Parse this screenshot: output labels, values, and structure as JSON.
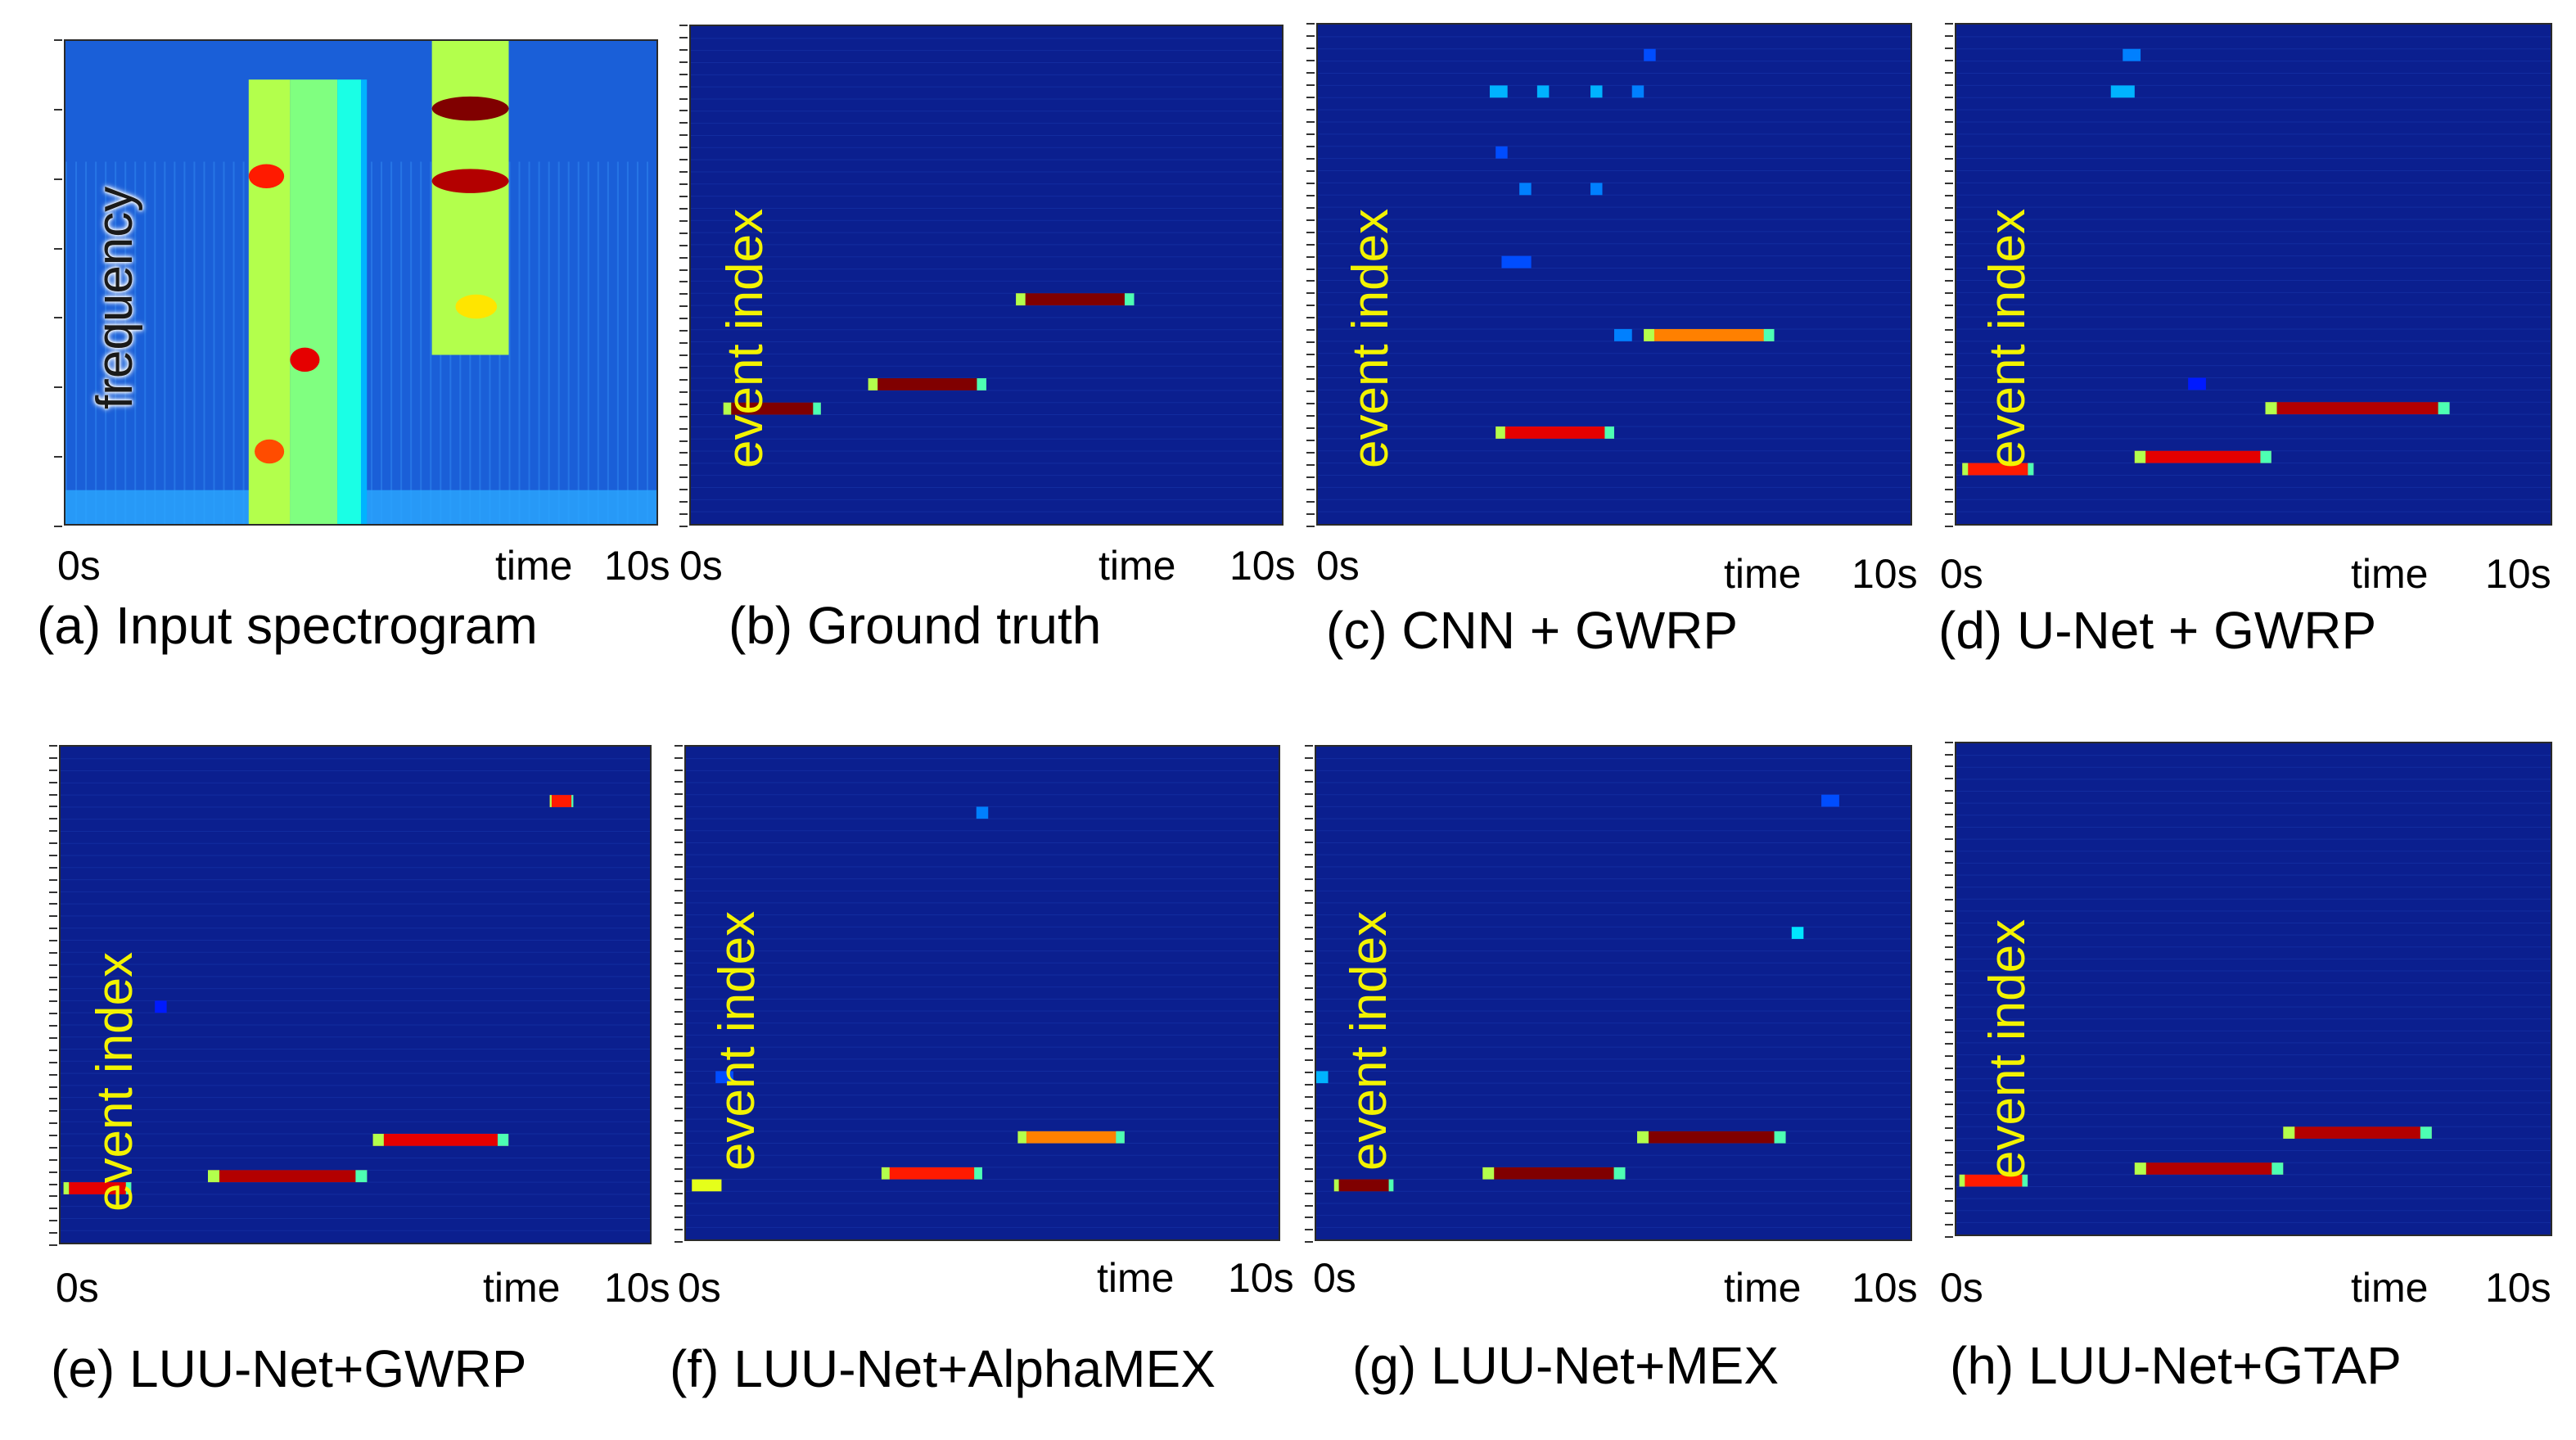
{
  "panels": [
    {
      "id": "a",
      "caption": "(a) Input spectrogram",
      "ylabel": "frequency",
      "x_left": "0s",
      "x_mid": "time",
      "x_right": "10s"
    },
    {
      "id": "b",
      "caption": "(b) Ground truth",
      "ylabel": "event index",
      "x_left": "0s",
      "x_mid": "time",
      "x_right": "10s"
    },
    {
      "id": "c",
      "caption": "(c) CNN + GWRP",
      "ylabel": "event index",
      "x_left": "0s",
      "x_mid": "time",
      "x_right": "10s"
    },
    {
      "id": "d",
      "caption": "(d) U-Net + GWRP",
      "ylabel": "event index",
      "x_left": "0s",
      "x_mid": "time",
      "x_right": "10s"
    },
    {
      "id": "e",
      "caption": "(e) LUU-Net+GWRP",
      "ylabel": "event index",
      "x_left": "0s",
      "x_mid": "time",
      "x_right": "10s"
    },
    {
      "id": "f",
      "caption": "(f) LUU-Net+AlphaMEX",
      "ylabel": "event index",
      "x_left": "0s",
      "x_mid": "time",
      "x_right": "10s"
    },
    {
      "id": "g",
      "caption": "(g) LUU-Net+MEX",
      "ylabel": "event index",
      "x_left": "0s",
      "x_mid": "time",
      "x_right": "10s"
    },
    {
      "id": "h",
      "caption": "(h) LUU-Net+GTAP",
      "ylabel": "event index",
      "x_left": "0s",
      "x_mid": "time",
      "x_right": "10s"
    }
  ],
  "chart_data": [
    {
      "type": "heatmap",
      "panel": "a",
      "xlim": [
        0,
        10
      ],
      "colormap": "jet",
      "bands": [
        {
          "t0": 3.1,
          "t1": 3.8,
          "f0": 0.0,
          "f1": 0.92,
          "level": 0.55
        },
        {
          "t0": 3.8,
          "t1": 4.6,
          "f0": 0.0,
          "f1": 0.92,
          "level": 0.5
        },
        {
          "t0": 4.6,
          "t1": 5.0,
          "f0": 0.0,
          "f1": 0.92,
          "level": 0.4
        },
        {
          "t0": 5.0,
          "t1": 5.1,
          "f0": 0.0,
          "f1": 0.92,
          "level": 0.3
        },
        {
          "t0": 6.2,
          "t1": 7.5,
          "f0": 0.35,
          "f1": 1.0,
          "level": 0.55
        }
      ],
      "hotspots": [
        {
          "t0": 6.2,
          "t1": 7.5,
          "f": 0.86,
          "level": 1.0
        },
        {
          "t0": 6.2,
          "t1": 7.5,
          "f": 0.71,
          "level": 0.95
        },
        {
          "t0": 6.6,
          "t1": 7.3,
          "f": 0.45,
          "level": 0.65
        },
        {
          "t0": 3.8,
          "t1": 4.3,
          "f": 0.34,
          "level": 0.9
        },
        {
          "t0": 3.1,
          "t1": 3.7,
          "f": 0.72,
          "level": 0.85
        },
        {
          "t0": 3.2,
          "t1": 3.7,
          "f": 0.15,
          "level": 0.8
        }
      ]
    },
    {
      "type": "heatmap",
      "panel": "b",
      "xlim": [
        0,
        10
      ],
      "rows": 41,
      "events": [
        {
          "row": 9,
          "t0": 0.55,
          "t1": 2.2,
          "level": 1.0
        },
        {
          "row": 11,
          "t0": 3.0,
          "t1": 5.0,
          "level": 1.0
        },
        {
          "row": 18,
          "t0": 5.5,
          "t1": 7.5,
          "level": 1.0
        }
      ]
    },
    {
      "type": "heatmap",
      "panel": "c",
      "xlim": [
        0,
        10
      ],
      "rows": 41,
      "events": [
        {
          "row": 7,
          "t0": 3.0,
          "t1": 5.0,
          "level": 0.9
        },
        {
          "row": 15,
          "t0": 5.5,
          "t1": 7.7,
          "level": 0.75
        },
        {
          "row": 35,
          "t0": 2.9,
          "t1": 3.2,
          "level": 0.3
        },
        {
          "row": 35,
          "t0": 3.7,
          "t1": 3.9,
          "level": 0.3
        },
        {
          "row": 35,
          "t0": 4.6,
          "t1": 4.8,
          "level": 0.3
        },
        {
          "row": 35,
          "t0": 5.3,
          "t1": 5.5,
          "level": 0.25
        },
        {
          "row": 27,
          "t0": 3.4,
          "t1": 3.6,
          "level": 0.25
        },
        {
          "row": 27,
          "t0": 4.6,
          "t1": 4.8,
          "level": 0.25
        },
        {
          "row": 21,
          "t0": 3.1,
          "t1": 3.6,
          "level": 0.2
        },
        {
          "row": 30,
          "t0": 3.0,
          "t1": 3.2,
          "level": 0.2
        },
        {
          "row": 38,
          "t0": 5.5,
          "t1": 5.7,
          "level": 0.2
        },
        {
          "row": 15,
          "t0": 5.0,
          "t1": 5.3,
          "level": 0.25
        }
      ]
    },
    {
      "type": "heatmap",
      "panel": "d",
      "xlim": [
        0,
        10
      ],
      "rows": 41,
      "events": [
        {
          "row": 4,
          "t0": 0.1,
          "t1": 1.3,
          "level": 0.85
        },
        {
          "row": 5,
          "t0": 3.0,
          "t1": 5.3,
          "level": 0.9
        },
        {
          "row": 9,
          "t0": 5.2,
          "t1": 8.3,
          "level": 0.95
        },
        {
          "row": 35,
          "t0": 2.6,
          "t1": 3.0,
          "level": 0.3
        },
        {
          "row": 38,
          "t0": 2.8,
          "t1": 3.1,
          "level": 0.25
        },
        {
          "row": 11,
          "t0": 3.9,
          "t1": 4.2,
          "level": 0.15
        }
      ]
    },
    {
      "type": "heatmap",
      "panel": "e",
      "xlim": [
        0,
        10
      ],
      "rows": 41,
      "events": [
        {
          "row": 4,
          "t0": 0.05,
          "t1": 1.2,
          "level": 0.9
        },
        {
          "row": 5,
          "t0": 2.5,
          "t1": 5.2,
          "level": 0.95
        },
        {
          "row": 8,
          "t0": 5.3,
          "t1": 7.6,
          "level": 0.9
        },
        {
          "row": 36,
          "t0": 8.3,
          "t1": 8.7,
          "level": 0.85
        },
        {
          "row": 19,
          "t0": 1.6,
          "t1": 1.8,
          "level": 0.15
        }
      ]
    },
    {
      "type": "heatmap",
      "panel": "f",
      "xlim": [
        0,
        10
      ],
      "rows": 41,
      "events": [
        {
          "row": 4,
          "t0": 0.1,
          "t1": 0.6,
          "level": 0.6
        },
        {
          "row": 5,
          "t0": 3.3,
          "t1": 5.0,
          "level": 0.85
        },
        {
          "row": 8,
          "t0": 5.6,
          "t1": 7.4,
          "level": 0.75
        },
        {
          "row": 35,
          "t0": 4.9,
          "t1": 5.1,
          "level": 0.25
        },
        {
          "row": 13,
          "t0": 0.5,
          "t1": 0.8,
          "level": 0.2
        }
      ]
    },
    {
      "type": "heatmap",
      "panel": "g",
      "xlim": [
        0,
        10
      ],
      "rows": 41,
      "events": [
        {
          "row": 4,
          "t0": 0.3,
          "t1": 1.3,
          "level": 1.0
        },
        {
          "row": 5,
          "t0": 2.8,
          "t1": 5.2,
          "level": 1.0
        },
        {
          "row": 8,
          "t0": 5.4,
          "t1": 7.9,
          "level": 1.0
        },
        {
          "row": 25,
          "t0": 8.0,
          "t1": 8.2,
          "level": 0.35
        },
        {
          "row": 36,
          "t0": 8.5,
          "t1": 8.8,
          "level": 0.2
        },
        {
          "row": 13,
          "t0": 0.0,
          "t1": 0.2,
          "level": 0.3
        }
      ]
    },
    {
      "type": "heatmap",
      "panel": "h",
      "xlim": [
        0,
        10
      ],
      "rows": 41,
      "events": [
        {
          "row": 4,
          "t0": 0.05,
          "t1": 1.2,
          "level": 0.85
        },
        {
          "row": 5,
          "t0": 3.0,
          "t1": 5.5,
          "level": 0.95
        },
        {
          "row": 8,
          "t0": 5.5,
          "t1": 8.0,
          "level": 0.95
        }
      ]
    }
  ]
}
